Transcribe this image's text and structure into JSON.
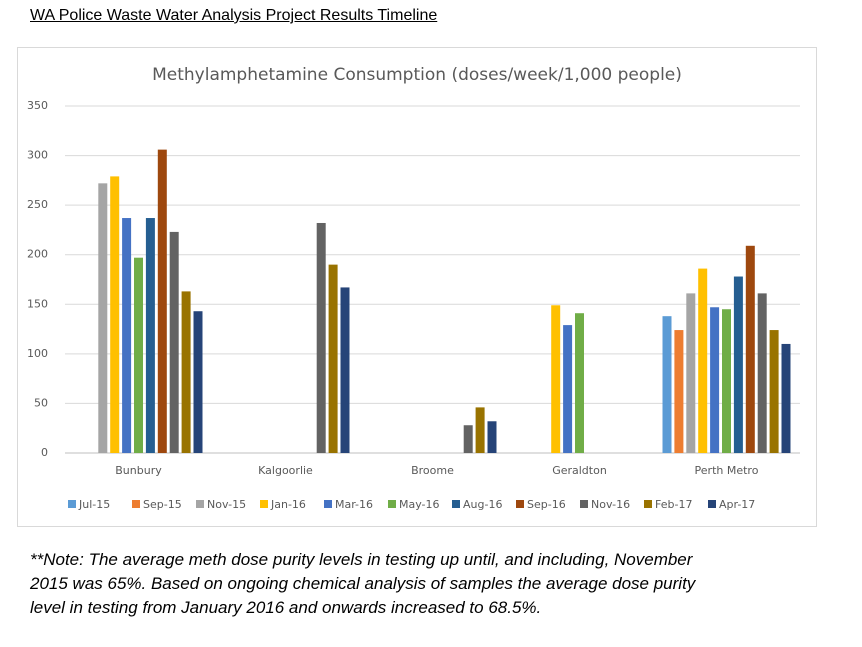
{
  "header": {
    "title": "WA Police Waste Water Analysis Project Results Timeline"
  },
  "chart_data": {
    "type": "bar",
    "title": "Methylamphetamine Consumption (doses/week/1,000 people)",
    "categories": [
      "Bunbury",
      "Kalgoorlie",
      "Broome",
      "Geraldton",
      "Perth Metro"
    ],
    "series": [
      {
        "name": "Jul-15",
        "color": "#5b9bd5",
        "values": [
          null,
          null,
          null,
          null,
          138
        ]
      },
      {
        "name": "Sep-15",
        "color": "#ed7d31",
        "values": [
          null,
          null,
          null,
          null,
          124
        ]
      },
      {
        "name": "Nov-15",
        "color": "#a5a5a5",
        "values": [
          272,
          null,
          null,
          null,
          161
        ]
      },
      {
        "name": "Jan-16",
        "color": "#ffc000",
        "values": [
          279,
          null,
          null,
          149,
          186
        ]
      },
      {
        "name": "Mar-16",
        "color": "#4472c4",
        "values": [
          237,
          null,
          null,
          129,
          147
        ]
      },
      {
        "name": "May-16",
        "color": "#70ad47",
        "values": [
          197,
          null,
          null,
          141,
          145
        ]
      },
      {
        "name": "Aug-16",
        "color": "#255e91",
        "values": [
          237,
          null,
          null,
          null,
          178
        ]
      },
      {
        "name": "Sep-16",
        "color": "#9e480e",
        "values": [
          306,
          null,
          null,
          null,
          209
        ]
      },
      {
        "name": "Nov-16",
        "color": "#636363",
        "values": [
          223,
          232,
          28,
          null,
          161
        ]
      },
      {
        "name": "Feb-17",
        "color": "#997300",
        "values": [
          163,
          190,
          46,
          null,
          124
        ]
      },
      {
        "name": "Apr-17",
        "color": "#264478",
        "values": [
          143,
          167,
          32,
          null,
          110
        ]
      }
    ],
    "ylim": [
      0,
      350
    ],
    "yticks": [
      0,
      50,
      100,
      150,
      200,
      250,
      300,
      350
    ],
    "grid": true
  },
  "note": {
    "lines": [
      "**Note: The average meth dose purity levels in testing up until, and including, November",
      "2015 was 65%. Based on ongoing chemical analysis of samples the average dose purity",
      "level in testing from January 2016 and onwards increased to 68.5%."
    ]
  }
}
